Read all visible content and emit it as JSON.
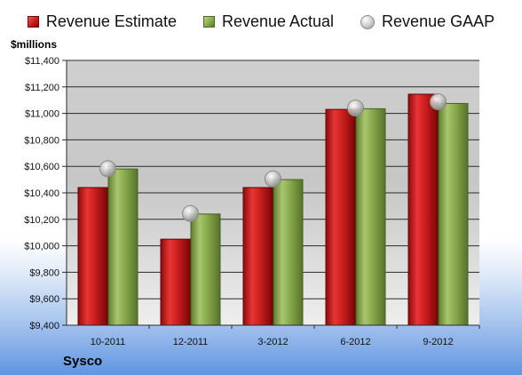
{
  "legend": {
    "estimate": "Revenue Estimate",
    "actual": "Revenue Actual",
    "gaap": "Revenue GAAP"
  },
  "units_label": "$millions",
  "company": "Sysco",
  "colors": {
    "estimate": "#c81c1c",
    "actual": "#8aaa4d",
    "gaap": "#c8c8c8"
  },
  "chart_data": {
    "type": "bar",
    "categories": [
      "10-2011",
      "12-2011",
      "3-2012",
      "6-2012",
      "9-2012"
    ],
    "series": [
      {
        "name": "Revenue Estimate",
        "kind": "bar",
        "values": [
          10440,
          10050,
          10440,
          11030,
          11145
        ]
      },
      {
        "name": "Revenue Actual",
        "kind": "bar",
        "values": [
          10580,
          10240,
          10500,
          11035,
          11075
        ]
      },
      {
        "name": "Revenue GAAP",
        "kind": "marker",
        "values": [
          10582,
          10244,
          10505,
          11040,
          11088
        ]
      }
    ],
    "ylabel": "$millions",
    "ylim": [
      9400,
      11400
    ],
    "yticks": [
      9400,
      9600,
      9800,
      10000,
      10200,
      10400,
      10600,
      10800,
      11000,
      11200,
      11400
    ],
    "ytick_labels": [
      "$9,400",
      "$9,600",
      "$9,800",
      "$10,000",
      "$10,200",
      "$10,400",
      "$10,600",
      "$10,800",
      "$11,000",
      "$11,200",
      "$11,400"
    ],
    "grid": true,
    "legend_position": "top"
  }
}
